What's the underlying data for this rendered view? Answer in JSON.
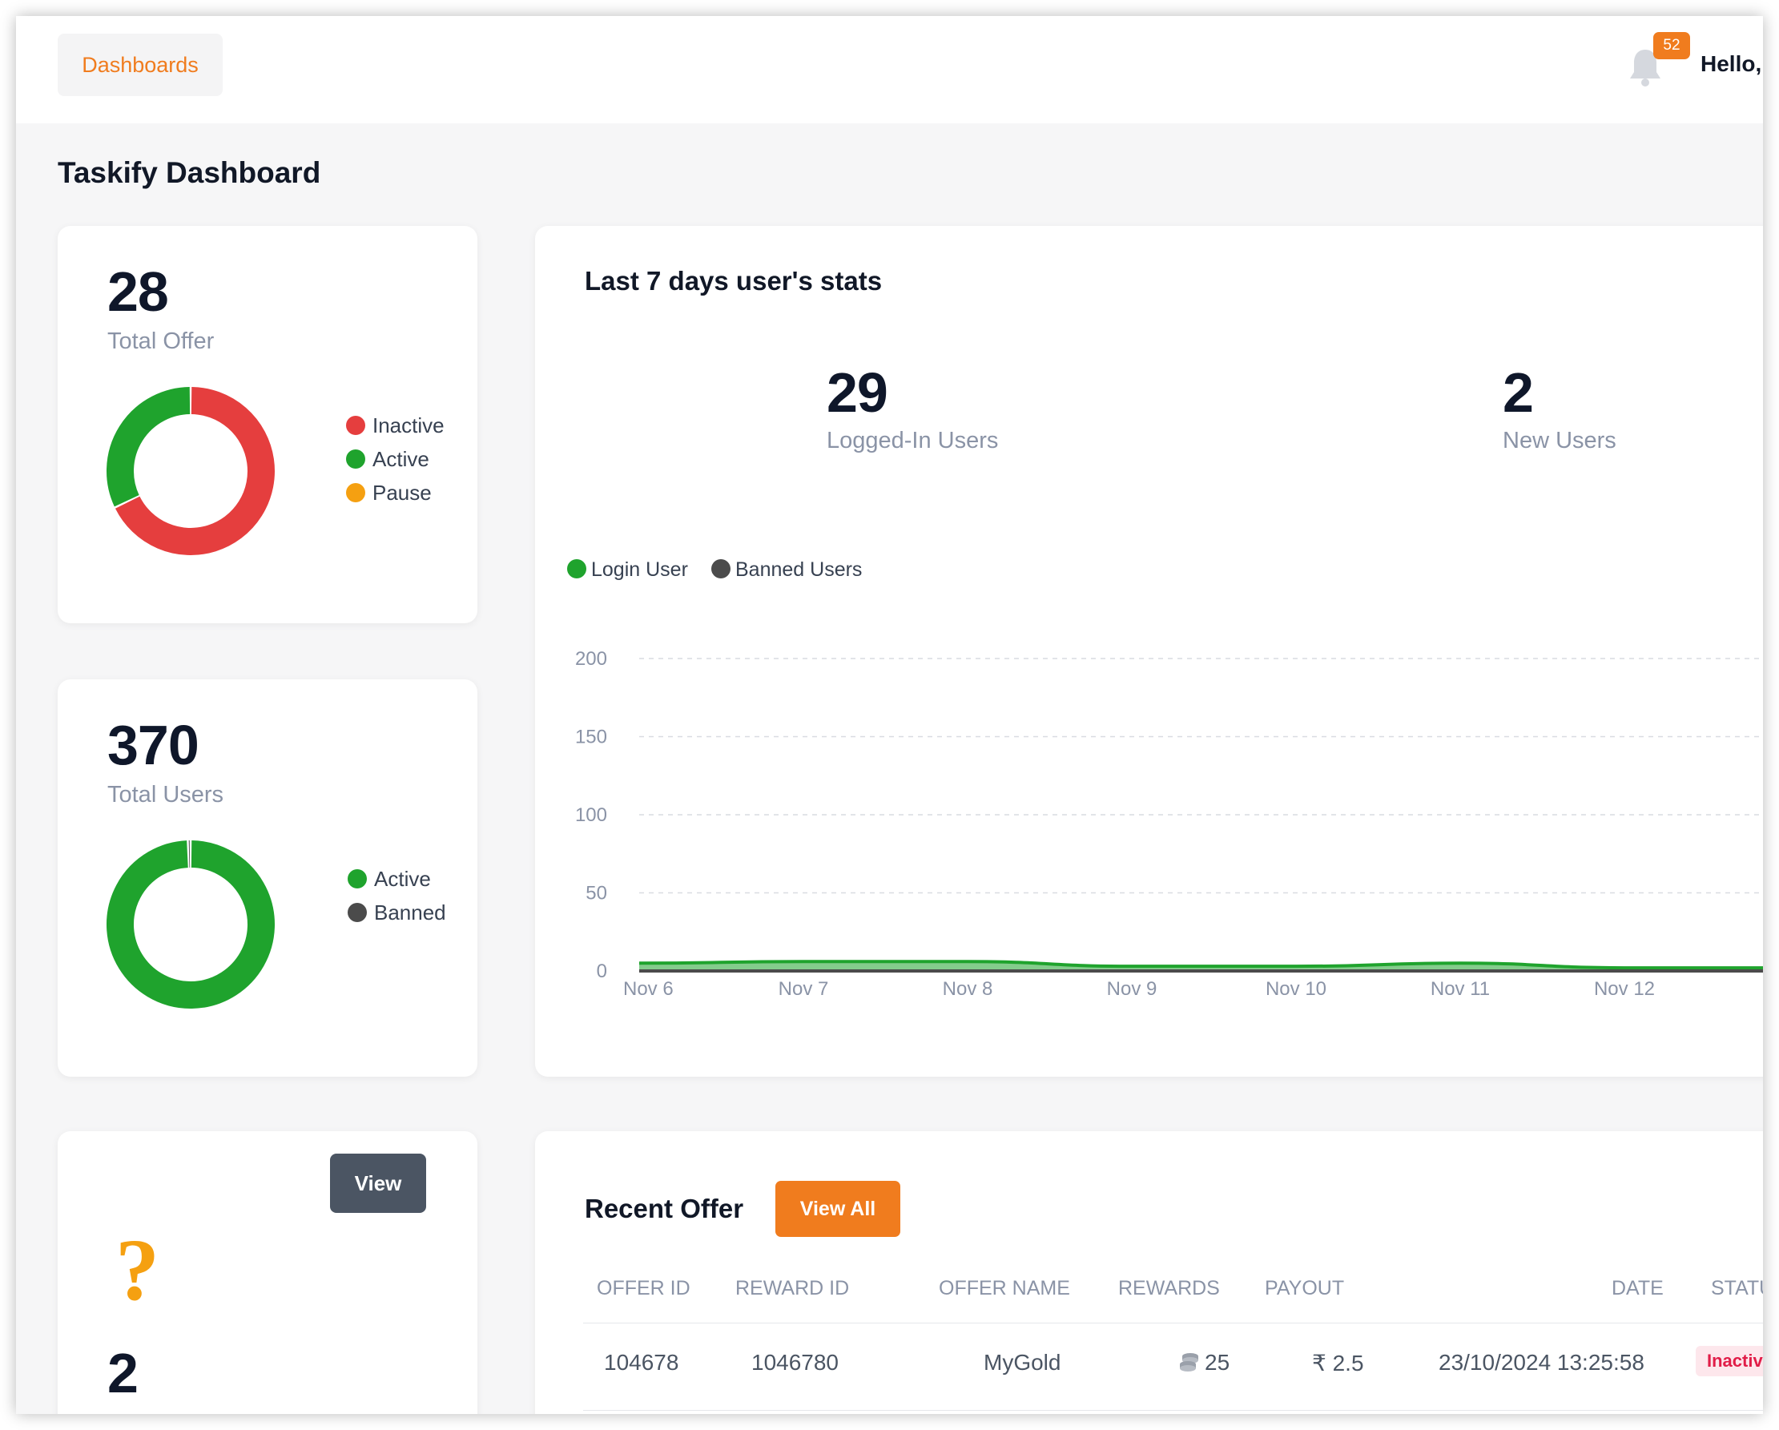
{
  "header": {
    "nav_label": "Dashboards",
    "notification_count": "52",
    "greeting": "Hello,"
  },
  "page": {
    "title": "Taskify Dashboard"
  },
  "offers_card": {
    "total": "28",
    "label": "Total Offer",
    "legend": [
      "Inactive",
      "Active",
      "Pause"
    ],
    "colors": {
      "inactive": "#e53e3e",
      "active": "#1fa32d",
      "pause": "#f5a011"
    },
    "chart_data": {
      "type": "pie",
      "categories": [
        "Inactive",
        "Active",
        "Pause"
      ],
      "values": [
        19,
        9,
        0
      ]
    }
  },
  "users_card": {
    "total": "370",
    "label": "Total Users",
    "legend": [
      "Active",
      "Banned"
    ],
    "colors": {
      "active": "#1fa32d",
      "banned": "#4b4b4b"
    },
    "chart_data": {
      "type": "pie",
      "categories": [
        "Active",
        "Banned"
      ],
      "values": [
        368,
        2
      ]
    }
  },
  "misc_card": {
    "view_label": "View",
    "value": "2"
  },
  "stats_card": {
    "title": "Last 7 days user's stats",
    "logged_in_value": "29",
    "logged_in_label": "Logged-In Users",
    "new_users_value": "2",
    "new_users_label": "New Users",
    "chart_data": {
      "type": "area",
      "categories": [
        "Nov 6",
        "Nov 7",
        "Nov 8",
        "Nov 9",
        "Nov 10",
        "Nov 11",
        "Nov 12"
      ],
      "series": [
        {
          "name": "Login User",
          "values": [
            5,
            6,
            6,
            3,
            3,
            5,
            2
          ],
          "color": "#1fa32d"
        },
        {
          "name": "Banned Users",
          "values": [
            0,
            0,
            0,
            0,
            0,
            0,
            0
          ],
          "color": "#4b4b4b"
        }
      ],
      "yticks": [
        "0",
        "50",
        "100",
        "150",
        "200"
      ],
      "ylim": [
        0,
        200
      ],
      "grid": true,
      "legend_position": "top-left"
    }
  },
  "recent_offer": {
    "title": "Recent Offer",
    "view_all_label": "View All",
    "columns": [
      "OFFER ID",
      "REWARD ID",
      "OFFER NAME",
      "REWARDS",
      "PAYOUT",
      "DATE",
      "STATUS"
    ],
    "rows": [
      {
        "offer_id": "104678",
        "reward_id": "1046780",
        "offer_name": "MyGold",
        "rewards": "25",
        "payout": "₹ 2.5",
        "date": "23/10/2024 13:25:58",
        "status": "Inactive"
      }
    ]
  }
}
